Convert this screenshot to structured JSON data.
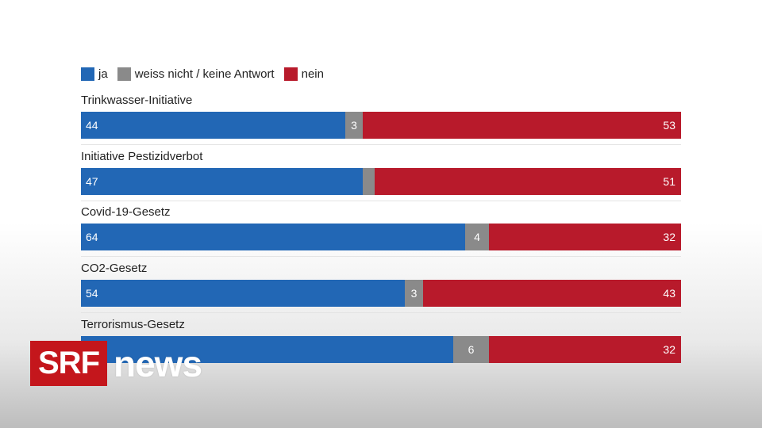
{
  "legend": {
    "ja": "ja",
    "weiss": "weiss nicht / keine Antwort",
    "nein": "nein"
  },
  "colors": {
    "ja": "#2267b5",
    "weiss": "#8a8a8a",
    "nein": "#b81a2b",
    "brand": "#c4161c"
  },
  "logo": {
    "brand": "SRF",
    "product": "news"
  },
  "chart_data": {
    "type": "bar",
    "orientation": "horizontal",
    "stacked": true,
    "xlim": [
      0,
      100
    ],
    "grid": false,
    "legend_position": "top-left",
    "categories": [
      "Trinkwasser-Initiative",
      "Initiative Pestizidverbot",
      "Covid-19-Gesetz",
      "CO2-Gesetz",
      "Terrorismus-Gesetz"
    ],
    "series": [
      {
        "name": "ja",
        "values": [
          44,
          47,
          64,
          54,
          62
        ],
        "labels": [
          "44",
          "47",
          "64",
          "54",
          ""
        ]
      },
      {
        "name": "weiss nicht / keine Antwort",
        "values": [
          3,
          2,
          4,
          3,
          6
        ],
        "labels": [
          "3",
          "",
          "4",
          "3",
          "6"
        ]
      },
      {
        "name": "nein",
        "values": [
          53,
          51,
          32,
          43,
          32
        ],
        "labels": [
          "53",
          "51",
          "32",
          "43",
          "32"
        ]
      }
    ]
  }
}
